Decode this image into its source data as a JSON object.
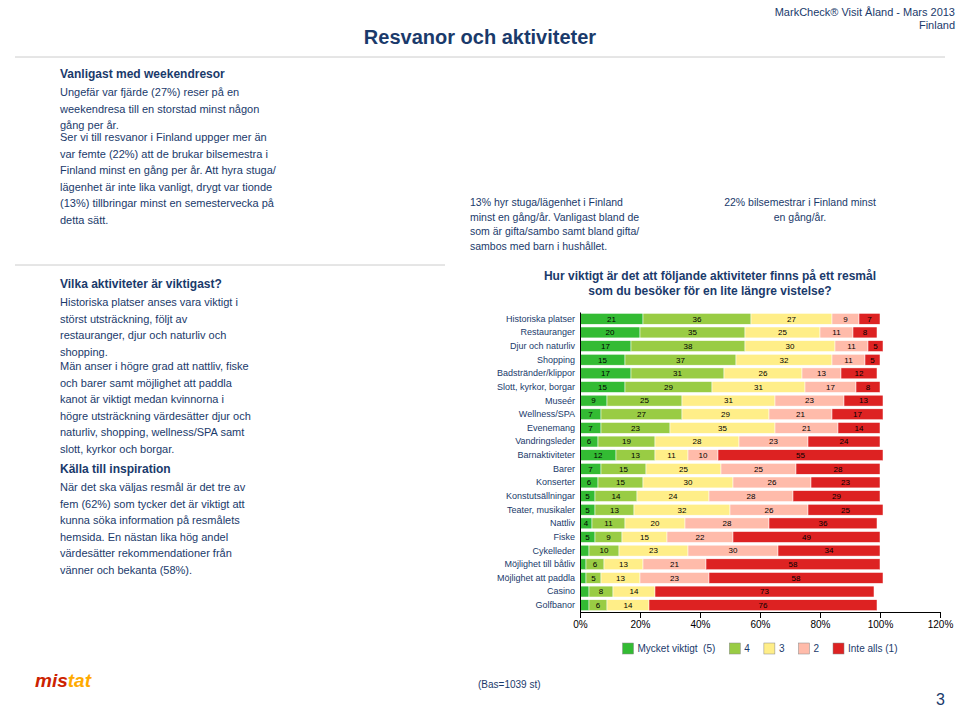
{
  "page": {
    "title": "Resvanor och aktiviteter",
    "top_right": "MarkCheck® Visit Åland - Mars 2013\nFinland",
    "page_number": "3",
    "text_color": "#1a3a6b",
    "left_col_title": "Vanligast med weekendresor",
    "left_col_text1": "Ungefär var fjärde (27%) reser på en\nweekendresa till en storstad minst någon\ngång per år.",
    "left_col_text2": "Ser vi till resvanor i Finland uppger mer än\nvar femte (22%) att de brukar bilsemestra i\nFinland minst en gång per år. Att hyra stuga/\nlägenhet är inte lika vanligt, drygt var tionde\n(13%) tillbringar minst en semestervecka på\ndetta sätt.",
    "mid_caption1": "13% hyr stuga/lägenhet i Finland\nminst en gång/år.  Vanligast bland de\nsom är gifta/sambo samt bland gifta/\nsambos med barn i hushållet.",
    "right_caption": "22% bilsemestrar i Finland minst\nen gång/år.",
    "activities_title": "Vilka aktiviteter är viktigast?",
    "activities_text1": "Historiska platser anses vara viktigt i\nstörst utsträckning, följt av\nrestauranger, djur och naturliv och\nshopping.",
    "activities_text2": "Män anser i högre grad att nattliv, fiske\noch barer samt möjlighet att paddla\nkanot är viktigt medan kvinnorna i\nhögre utsträckning värdesätter djur och\nnaturliv, shopping, wellness/SPA samt\nslott, kyrkor och borgar.",
    "activities_title2": "Källa till inspiration",
    "activities_text3": "När det ska väljas resmål är det tre av\nfem (62%) som tycker det är viktigt att\nkunna söka information på resmålets\nhemsida. En nästan lika hög andel\nvärdesätter rekommendationer från\nvänner och bekanta (58%).",
    "bas_text": "(Bas=1039 st)",
    "logo": [
      {
        "text": "mis",
        "color": "#cc2200"
      },
      {
        "text": "tat",
        "color": "#ffaa00"
      }
    ]
  },
  "chart_data": {
    "type": "bar",
    "orientation": "horizontal",
    "stacked": true,
    "data_labels": true,
    "grid": false,
    "legend": "bottom",
    "title": "Hur viktigt är det att följande aktiviteter finns på ett resmål\nsom du besöker för en lite längre vistelse?",
    "categories": [
      "Historiska platser",
      "Restauranger",
      "Djur och naturliv",
      "Shopping",
      "Badstränder/klippor",
      "Slott, kyrkor, borgar",
      "Museér",
      "Wellness/SPA",
      "Evenemang",
      "Vandringsleder",
      "Barnaktiviteter",
      "Barer",
      "Konserter",
      "Konstutsällningar",
      "Teater, musikaler",
      "Nattliv",
      "Fiske",
      "Cykelleder",
      "Möjlighet till båtliv",
      "Möjlighet att paddla",
      "Casino",
      "Golfbanor"
    ],
    "series": [
      {
        "name": "Mycket viktigt  (5)",
        "color": "#33bb33",
        "values": [
          21,
          20,
          17,
          15,
          17,
          15,
          9,
          7,
          7,
          6,
          12,
          7,
          6,
          5,
          5,
          4,
          5,
          3,
          2,
          2,
          3,
          3
        ],
        "value_labels": [
          "21",
          "20",
          "17",
          "15",
          "17",
          "15",
          "9",
          "7",
          "7",
          "6",
          "12",
          "7",
          "6",
          "5",
          "5",
          "4",
          "5",
          null,
          null,
          null,
          null,
          null
        ]
      },
      {
        "name": "4",
        "color": "#99cc44",
        "values": [
          36,
          35,
          38,
          37,
          31,
          29,
          25,
          27,
          23,
          19,
          13,
          15,
          15,
          14,
          13,
          11,
          9,
          10,
          6,
          5,
          8,
          6
        ],
        "value_labels": [
          "36",
          "35",
          "38",
          "37",
          "31",
          "29",
          "25",
          "27",
          "23",
          "19",
          "13",
          "15",
          "15",
          "14",
          "13",
          "11",
          "9",
          "10",
          "6",
          "5",
          "8",
          "6"
        ]
      },
      {
        "name": "3",
        "color": "#ffee88",
        "values": [
          27,
          25,
          30,
          32,
          26,
          31,
          31,
          29,
          35,
          28,
          11,
          25,
          30,
          24,
          32,
          20,
          15,
          23,
          13,
          13,
          14,
          14
        ],
        "value_labels": [
          "27",
          "25",
          "30",
          "32",
          "26",
          "31",
          "31",
          "29",
          "35",
          "28",
          "11",
          "25",
          "30",
          "24",
          "32",
          "20",
          "15",
          "23",
          "13",
          "13",
          "14",
          "14"
        ]
      },
      {
        "name": "2",
        "color": "#ffbbaa",
        "values": [
          9,
          11,
          11,
          11,
          13,
          17,
          23,
          21,
          21,
          23,
          10,
          25,
          26,
          28,
          26,
          28,
          22,
          30,
          21,
          23,
          0,
          0
        ],
        "value_labels": [
          "9",
          "11",
          "11",
          "11",
          "13",
          "17",
          "23",
          "21",
          "21",
          "23",
          "10",
          "25",
          "26",
          "28",
          "26",
          "28",
          "22",
          "30",
          "21",
          "23",
          null,
          null
        ]
      },
      {
        "name": "Inte alls (1)",
        "color": "#dd2222",
        "values": [
          7,
          8,
          5,
          5,
          12,
          8,
          13,
          17,
          14,
          24,
          55,
          28,
          23,
          29,
          25,
          36,
          49,
          34,
          58,
          58,
          73,
          76
        ],
        "value_labels": [
          "7",
          "8",
          "5",
          "5",
          "12",
          "8",
          "13",
          "17",
          "14",
          "24",
          "55",
          "28",
          "23",
          "29",
          "25",
          "36",
          "49",
          "34",
          "58",
          "58",
          "73",
          "76"
        ]
      }
    ],
    "xlim": [
      0,
      120
    ],
    "xticks": [
      {
        "value": 0,
        "label": "0%"
      },
      {
        "value": 20,
        "label": "20%"
      },
      {
        "value": 40,
        "label": "40%"
      },
      {
        "value": 60,
        "label": "60%"
      },
      {
        "value": 80,
        "label": "80%"
      },
      {
        "value": 100,
        "label": "100%"
      },
      {
        "value": 120,
        "label": "120%"
      }
    ]
  }
}
